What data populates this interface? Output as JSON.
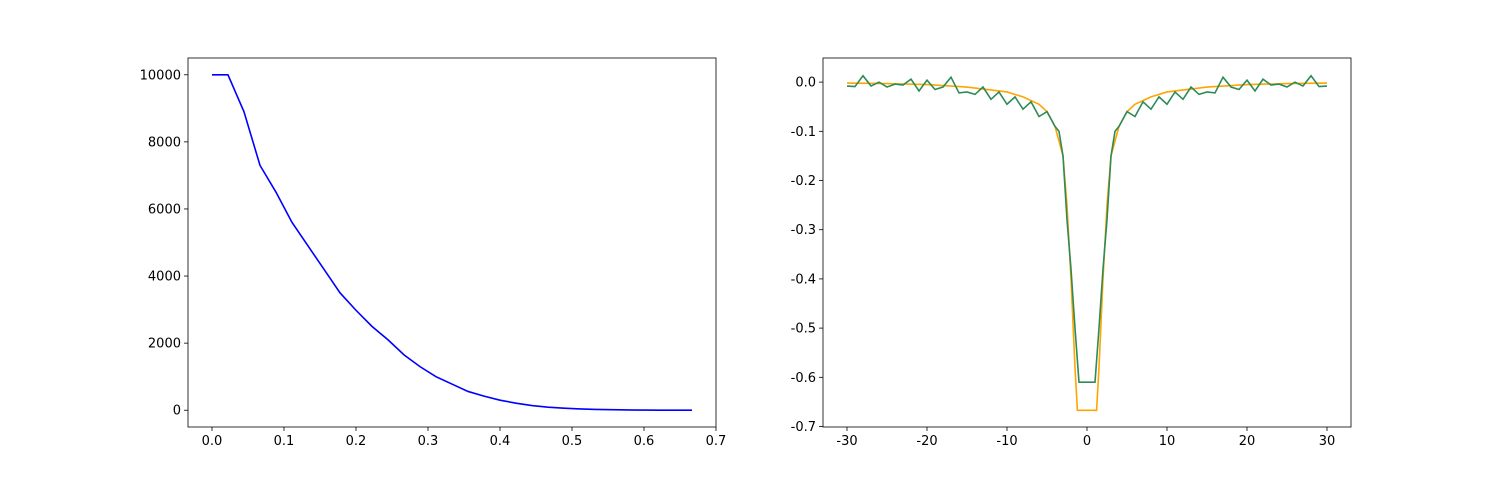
{
  "chart_data": [
    {
      "type": "line",
      "color": "#0000ff",
      "x": [
        0,
        0.0222,
        0.0444,
        0.0667,
        0.0889,
        0.1111,
        0.1333,
        0.1556,
        0.1778,
        0.2,
        0.2222,
        0.2444,
        0.2667,
        0.2889,
        0.3111,
        0.3333,
        0.3556,
        0.3778,
        0.4,
        0.4222,
        0.4444,
        0.4667,
        0.4889,
        0.5111,
        0.5333,
        0.5556,
        0.5778,
        0.6,
        0.6222,
        0.6444,
        0.6667
      ],
      "values": [
        10000,
        10000,
        8900,
        7300,
        6500,
        5600,
        4900,
        4200,
        3500,
        2980,
        2500,
        2100,
        1650,
        1300,
        1000,
        780,
        560,
        420,
        300,
        210,
        140,
        90,
        60,
        40,
        25,
        15,
        8,
        4,
        2,
        1,
        0
      ],
      "xlim": [
        -0.0333,
        0.7
      ],
      "ylim": [
        -500,
        10500
      ],
      "xticks": [
        {
          "value": 0,
          "label": "0.0"
        },
        0.1,
        0.2,
        0.3,
        0.4,
        0.5,
        0.6,
        0.7
      ],
      "yticks": [
        0,
        2000,
        4000,
        6000,
        8000,
        10000
      ]
    },
    {
      "type": "line",
      "series": [
        {
          "color": "#ffa500",
          "x": [
            -30,
            -25,
            -20,
            -15,
            -10,
            -8,
            -6,
            -5,
            -4,
            -3,
            -2.5,
            -2,
            -1.5,
            -1.2,
            1.2,
            1.5,
            2,
            2.5,
            3,
            4,
            5,
            6,
            8,
            10,
            15,
            20,
            25,
            30
          ],
          "values": [
            -0.002,
            -0.003,
            -0.005,
            -0.01,
            -0.02,
            -0.03,
            -0.045,
            -0.06,
            -0.09,
            -0.15,
            -0.25,
            -0.4,
            -0.58,
            -0.667,
            -0.667,
            -0.58,
            -0.4,
            -0.25,
            -0.15,
            -0.09,
            -0.06,
            -0.045,
            -0.03,
            -0.02,
            -0.01,
            -0.005,
            -0.003,
            -0.002
          ]
        },
        {
          "color": "#2e8b57",
          "x": [
            -30,
            -29,
            -28,
            -27,
            -26,
            -25,
            -24,
            -23,
            -22,
            -21,
            -20,
            -19,
            -18,
            -17,
            -16,
            -15,
            -14,
            -13,
            -12,
            -11,
            -10,
            -9,
            -8,
            -7,
            -6,
            -5,
            -4,
            -3.5,
            -3,
            -2.5,
            -2,
            -1.5,
            -1,
            1,
            1.5,
            2,
            2.5,
            3,
            3.5,
            4,
            5,
            6,
            7,
            8,
            9,
            10,
            11,
            12,
            13,
            14,
            15,
            16,
            17,
            18,
            19,
            20,
            21,
            22,
            23,
            24,
            25,
            26,
            27,
            28,
            29,
            30
          ],
          "values": [
            -0.008,
            -0.009,
            0.013,
            -0.008,
            0.0,
            -0.01,
            -0.004,
            -0.006,
            0.006,
            -0.018,
            0.004,
            -0.015,
            -0.01,
            0.01,
            -0.022,
            -0.02,
            -0.025,
            -0.01,
            -0.035,
            -0.02,
            -0.045,
            -0.03,
            -0.055,
            -0.04,
            -0.07,
            -0.06,
            -0.09,
            -0.1,
            -0.15,
            -0.28,
            -0.38,
            -0.5,
            -0.61,
            -0.61,
            -0.5,
            -0.38,
            -0.28,
            -0.15,
            -0.1,
            -0.09,
            -0.06,
            -0.07,
            -0.04,
            -0.055,
            -0.03,
            -0.045,
            -0.02,
            -0.035,
            -0.01,
            -0.025,
            -0.02,
            -0.022,
            0.01,
            -0.01,
            -0.015,
            0.004,
            -0.018,
            0.006,
            -0.006,
            -0.004,
            -0.01,
            0.0,
            -0.008,
            0.013,
            -0.009,
            -0.008
          ]
        }
      ],
      "xlim": [
        -33,
        33
      ],
      "ylim": [
        -0.701,
        0.049
      ],
      "xticks": [
        -30,
        -20,
        -10,
        0,
        10,
        20,
        30
      ],
      "yticks": [
        -0.7,
        -0.6,
        -0.5,
        -0.4,
        -0.3,
        -0.2,
        -0.1,
        {
          "value": 0,
          "label": "0.0"
        }
      ]
    }
  ]
}
